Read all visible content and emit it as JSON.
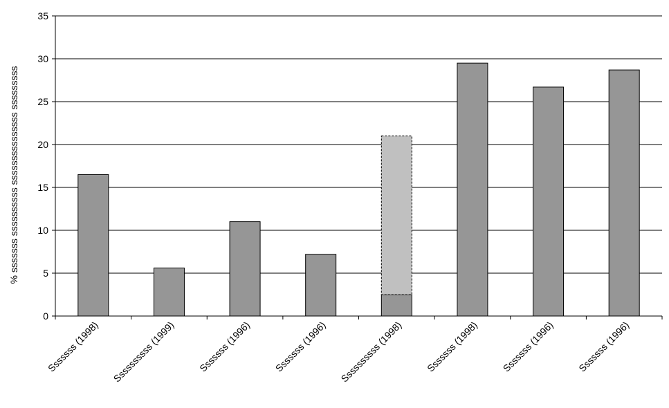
{
  "chart_data": {
    "type": "bar",
    "categories": [
      "Sssssss (1998)",
      "Ssssssssss (1999)",
      "Sssssss (1996)",
      "Sssssss (1996)",
      "Ssssssssss (1998)",
      "Sssssss (1998)",
      "Sssssss (1996)",
      "Sssssss (1996)"
    ],
    "series": [
      {
        "values": [
          16.5,
          5.6,
          11.0,
          7.2,
          2.5,
          29.5,
          26.7,
          28.7
        ],
        "color": "#969696",
        "border": "solid"
      },
      {
        "values": [
          0,
          0,
          0,
          0,
          18.5,
          0,
          0,
          0
        ],
        "color": "#c0c0c0",
        "border": "dashed"
      }
    ],
    "stacked": true,
    "title": "",
    "xlabel": "",
    "ylabel": "% sssssss ssssssssss sssssssssssssss sssssssss",
    "ylim": [
      0,
      35
    ],
    "yticks": [
      0,
      5,
      10,
      15,
      20,
      25,
      30,
      35
    ],
    "grid": true
  }
}
